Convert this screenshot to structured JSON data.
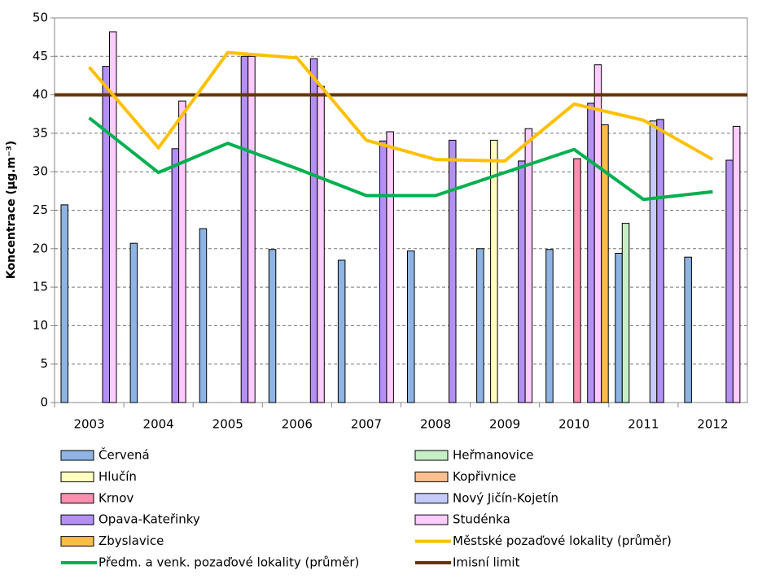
{
  "chart_data": {
    "type": "bar-line",
    "y_label": "Koncentrace (µg.m⁻³)",
    "categories": [
      "2003",
      "2004",
      "2005",
      "2006",
      "2007",
      "2008",
      "2009",
      "2010",
      "2011",
      "2012"
    ],
    "ylim": [
      0,
      50
    ],
    "yticks": [
      0,
      5,
      10,
      15,
      20,
      25,
      30,
      35,
      40,
      45,
      50
    ],
    "grid": true,
    "series": [
      {
        "name": "Červená",
        "color": "#8eb4e3",
        "kind": "bar",
        "values": [
          25.7,
          20.7,
          22.6,
          19.9,
          18.5,
          19.7,
          20.0,
          19.9,
          19.4,
          18.9
        ]
      },
      {
        "name": "Heřmanovice",
        "color": "#c6efc6",
        "kind": "bar",
        "values": [
          null,
          null,
          null,
          null,
          null,
          null,
          null,
          null,
          23.3,
          null
        ]
      },
      {
        "name": "Hlučín",
        "color": "#ffffc0",
        "kind": "bar",
        "values": [
          null,
          null,
          null,
          null,
          null,
          null,
          34.1,
          null,
          null,
          null
        ]
      },
      {
        "name": "Kopřivnice",
        "color": "#fac090",
        "kind": "bar",
        "values": [
          null,
          null,
          null,
          null,
          null,
          null,
          null,
          null,
          null,
          null
        ]
      },
      {
        "name": "Krnov",
        "color": "#ff8fb0",
        "kind": "bar",
        "values": [
          null,
          null,
          null,
          null,
          null,
          null,
          null,
          31.7,
          null,
          null
        ]
      },
      {
        "name": "Nový Jičín-Kojetín",
        "color": "#c4cbf8",
        "kind": "bar",
        "values": [
          null,
          null,
          null,
          null,
          null,
          null,
          null,
          null,
          36.6,
          null
        ]
      },
      {
        "name": "Opava-Kateřinky",
        "color": "#b490f5",
        "kind": "bar",
        "values": [
          43.7,
          33.0,
          45.0,
          44.7,
          34.0,
          34.1,
          31.4,
          38.9,
          36.8,
          31.5
        ]
      },
      {
        "name": "Studénka",
        "color": "#ffccff",
        "kind": "bar",
        "values": [
          48.2,
          39.2,
          45.0,
          41.1,
          35.2,
          null,
          35.6,
          43.9,
          null,
          35.9
        ]
      },
      {
        "name": "Zbyslavice",
        "color": "#fbbc4a",
        "kind": "bar",
        "values": [
          null,
          null,
          null,
          null,
          null,
          null,
          null,
          36.1,
          null,
          null
        ]
      },
      {
        "name": "Městské pozaďové lokality (průměr)",
        "color": "#ffc000",
        "kind": "line",
        "values": [
          43.6,
          33.1,
          45.5,
          44.8,
          34.1,
          31.6,
          31.4,
          38.8,
          36.7,
          31.6
        ]
      },
      {
        "name": "Předm. a venk. pozaďové lokality (průměr)",
        "color": "#00b050",
        "kind": "line",
        "values": [
          37.0,
          29.9,
          33.7,
          30.4,
          26.9,
          26.9,
          29.9,
          32.9,
          26.4,
          27.4
        ]
      }
    ],
    "reference_line": {
      "name": "Imisní limit",
      "color": "#663300",
      "value": 40
    }
  }
}
